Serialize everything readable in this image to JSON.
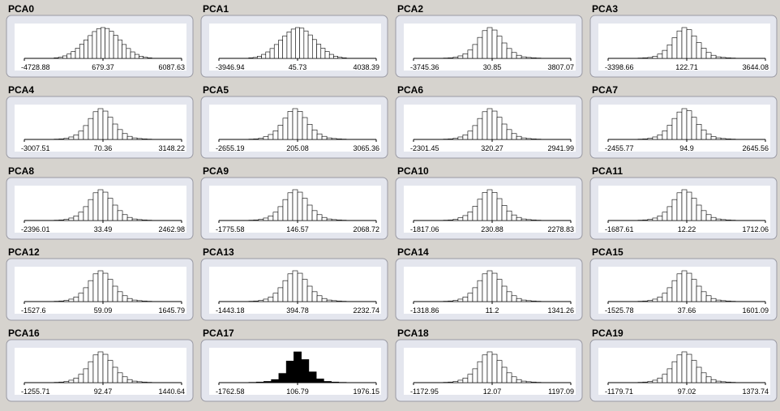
{
  "panels": [
    {
      "title": "PCA0",
      "labels": [
        "-4728.88",
        "679.37",
        "6087.63"
      ],
      "counts": [
        2,
        4,
        8,
        14,
        22,
        33,
        46,
        60,
        74,
        87,
        96,
        100,
        97,
        88,
        75,
        60,
        45,
        32,
        21,
        13,
        7,
        4,
        2
      ]
    },
    {
      "title": "PCA1",
      "labels": [
        "-3946.94",
        "45.73",
        "4038.39"
      ],
      "counts": [
        2,
        3,
        7,
        13,
        21,
        32,
        45,
        59,
        73,
        86,
        95,
        100,
        98,
        89,
        76,
        61,
        46,
        33,
        22,
        13,
        7,
        4,
        2
      ]
    },
    {
      "title": "PCA2",
      "labels": [
        "-3745.36",
        "30.85",
        "3807.07"
      ],
      "counts": [
        1,
        2,
        4,
        8,
        15,
        27,
        45,
        68,
        90,
        100,
        92,
        72,
        50,
        32,
        19,
        10,
        5,
        3,
        2,
        1
      ]
    },
    {
      "title": "PCA3",
      "labels": [
        "-3398.66",
        "122.71",
        "3644.08"
      ],
      "counts": [
        1,
        2,
        3,
        7,
        14,
        26,
        44,
        67,
        89,
        100,
        93,
        73,
        51,
        33,
        19,
        10,
        5,
        3,
        2,
        1
      ]
    },
    {
      "title": "PCA4",
      "labels": [
        "-3007.51",
        "70.36",
        "3148.22"
      ],
      "counts": [
        1,
        2,
        4,
        8,
        15,
        27,
        45,
        68,
        90,
        100,
        92,
        72,
        50,
        32,
        19,
        10,
        5,
        3,
        2,
        1
      ]
    },
    {
      "title": "PCA5",
      "labels": [
        "-2655.19",
        "205.08",
        "3065.36"
      ],
      "counts": [
        1,
        2,
        4,
        9,
        16,
        28,
        46,
        69,
        91,
        100,
        91,
        71,
        49,
        31,
        18,
        10,
        5,
        3,
        2,
        1
      ]
    },
    {
      "title": "PCA6",
      "labels": [
        "-2301.45",
        "320.27",
        "2941.99"
      ],
      "counts": [
        1,
        2,
        4,
        8,
        15,
        27,
        45,
        68,
        90,
        100,
        92,
        72,
        50,
        32,
        19,
        10,
        5,
        3,
        2,
        1
      ]
    },
    {
      "title": "PCA7",
      "labels": [
        "-2455.77",
        "94.9",
        "2645.56"
      ],
      "counts": [
        1,
        2,
        4,
        8,
        15,
        28,
        46,
        68,
        89,
        100,
        93,
        72,
        49,
        31,
        18,
        9,
        5,
        3,
        2,
        1
      ]
    },
    {
      "title": "PCA8",
      "labels": [
        "-2396.01",
        "33.49",
        "2462.98"
      ],
      "counts": [
        1,
        2,
        4,
        8,
        15,
        27,
        45,
        68,
        90,
        100,
        92,
        72,
        50,
        32,
        19,
        10,
        5,
        3,
        2,
        1
      ]
    },
    {
      "title": "PCA9",
      "labels": [
        "-1775.58",
        "146.57",
        "2068.72"
      ],
      "counts": [
        1,
        2,
        4,
        8,
        15,
        27,
        45,
        68,
        90,
        100,
        92,
        72,
        50,
        32,
        19,
        10,
        5,
        3,
        2,
        1
      ]
    },
    {
      "title": "PCA10",
      "labels": [
        "-1817.06",
        "230.88",
        "2278.83"
      ],
      "counts": [
        1,
        2,
        4,
        9,
        16,
        28,
        46,
        69,
        91,
        100,
        91,
        71,
        49,
        31,
        18,
        10,
        5,
        3,
        2,
        1
      ]
    },
    {
      "title": "PCA11",
      "labels": [
        "-1687.61",
        "12.22",
        "1712.06"
      ],
      "counts": [
        1,
        2,
        4,
        8,
        15,
        27,
        45,
        68,
        90,
        100,
        92,
        72,
        50,
        32,
        19,
        10,
        5,
        3,
        2,
        1
      ]
    },
    {
      "title": "PCA12",
      "labels": [
        "-1527.6",
        "59.09",
        "1645.79"
      ],
      "counts": [
        1,
        2,
        4,
        8,
        15,
        27,
        45,
        68,
        90,
        100,
        92,
        72,
        50,
        32,
        19,
        10,
        5,
        3,
        2,
        1
      ]
    },
    {
      "title": "PCA13",
      "labels": [
        "-1443.18",
        "394.78",
        "2232.74"
      ],
      "counts": [
        1,
        2,
        4,
        8,
        15,
        27,
        45,
        68,
        90,
        100,
        92,
        72,
        50,
        32,
        19,
        10,
        5,
        3,
        2,
        1
      ]
    },
    {
      "title": "PCA14",
      "labels": [
        "-1318.86",
        "11.2",
        "1341.26"
      ],
      "counts": [
        1,
        2,
        4,
        8,
        15,
        27,
        45,
        68,
        90,
        100,
        92,
        72,
        50,
        32,
        19,
        10,
        5,
        3,
        2,
        1
      ]
    },
    {
      "title": "PCA15",
      "labels": [
        "-1525.78",
        "37.66",
        "1601.09"
      ],
      "counts": [
        1,
        2,
        4,
        8,
        15,
        27,
        45,
        68,
        90,
        100,
        92,
        72,
        50,
        32,
        19,
        10,
        5,
        3,
        2,
        1
      ]
    },
    {
      "title": "PCA16",
      "labels": [
        "-1255.71",
        "92.47",
        "1440.64"
      ],
      "counts": [
        1,
        2,
        4,
        8,
        15,
        27,
        45,
        68,
        90,
        100,
        92,
        72,
        50,
        32,
        19,
        10,
        5,
        3,
        2,
        1
      ]
    },
    {
      "title": "PCA17",
      "labels": [
        "-1762.58",
        "106.79",
        "1976.15"
      ],
      "counts": [
        1,
        2,
        4,
        10,
        30,
        70,
        100,
        75,
        35,
        12,
        4,
        2,
        1
      ]
    },
    {
      "title": "PCA18",
      "labels": [
        "-1172.95",
        "12.07",
        "1197.09"
      ],
      "counts": [
        1,
        2,
        4,
        8,
        15,
        27,
        45,
        68,
        90,
        100,
        92,
        72,
        50,
        32,
        19,
        10,
        5,
        3,
        2,
        1
      ]
    },
    {
      "title": "PCA19",
      "labels": [
        "-1179.71",
        "97.02",
        "1373.74"
      ],
      "counts": [
        1,
        2,
        4,
        8,
        15,
        27,
        45,
        68,
        90,
        100,
        92,
        72,
        50,
        32,
        19,
        10,
        5,
        3,
        2,
        1
      ]
    }
  ]
}
